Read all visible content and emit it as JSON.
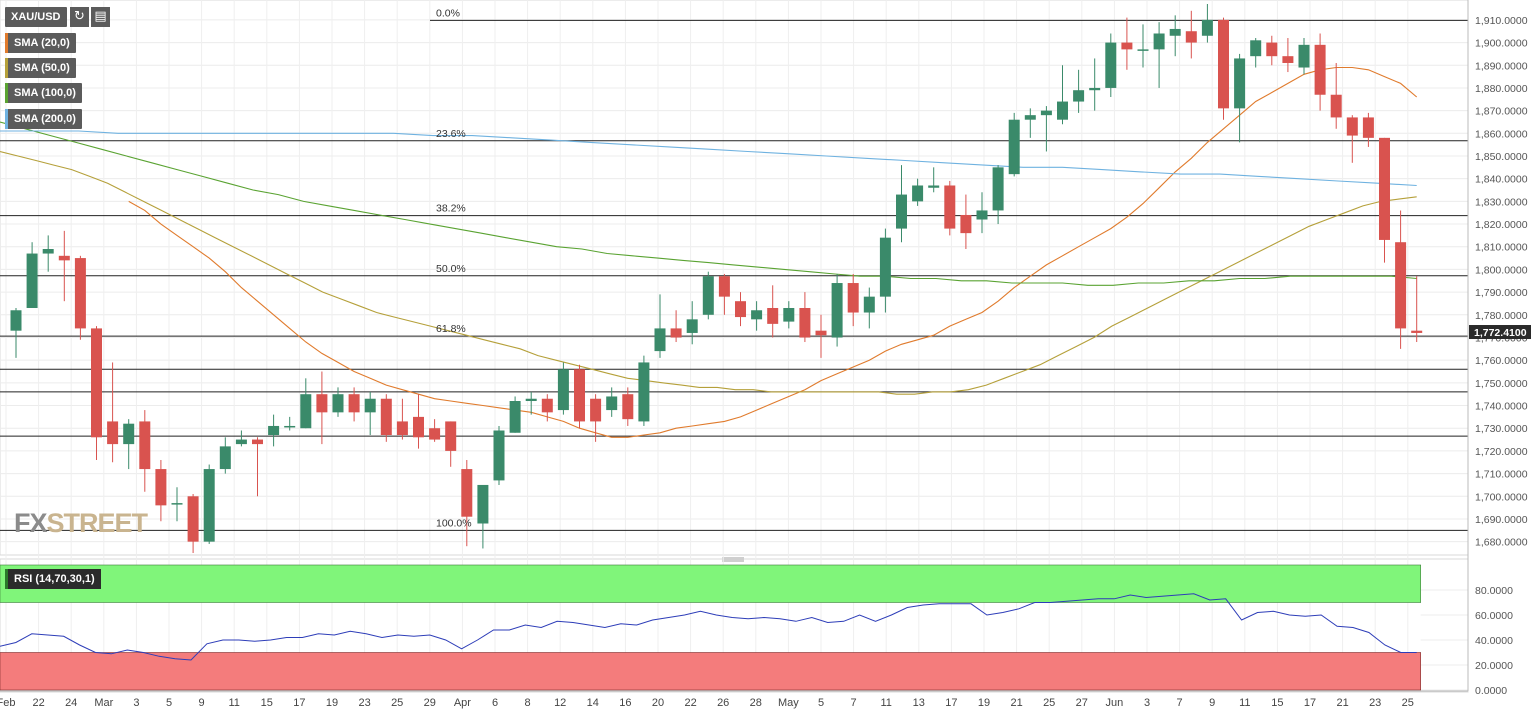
{
  "symbol": "XAU/USD",
  "toolbar": {
    "refresh_icon": "refresh-icon",
    "settings_icon": "bar-settings-icon"
  },
  "indicators": [
    {
      "label": "SMA (20,0)",
      "color": "#e07b2d"
    },
    {
      "label": "SMA (50,0)",
      "color": "#b5a03a"
    },
    {
      "label": "SMA (100,0)",
      "color": "#5aa332"
    },
    {
      "label": "SMA (200,0)",
      "color": "#6fb2e0"
    }
  ],
  "rsi_label": "RSI (14,70,30,1)",
  "logo": {
    "fx": "FX",
    "street": "STREET"
  },
  "current_price": "1,772.4100",
  "colors": {
    "up": "#3a8a6a",
    "down": "#d9534f",
    "overbought": "#80f57a",
    "oversold": "#f47c7c",
    "rsi_line": "#2d3db8"
  },
  "chart_data": [
    {
      "type": "candlestick",
      "title": "",
      "ylim": [
        1675,
        1917
      ],
      "y_ticks": [
        "1,910.0000",
        "1,900.0000",
        "1,890.0000",
        "1,880.0000",
        "1,870.0000",
        "1,860.0000",
        "1,850.0000",
        "1,840.0000",
        "1,830.0000",
        "1,820.0000",
        "1,810.0000",
        "1,800.0000",
        "1,790.0000",
        "1,780.0000",
        "1,770.0000",
        "1,760.0000",
        "1,750.0000",
        "1,740.0000",
        "1,730.0000",
        "1,720.0000",
        "1,710.0000",
        "1,700.0000",
        "1,690.0000",
        "1,680.0000"
      ],
      "x_ticks": [
        "Feb",
        "22",
        "24",
        "Mar",
        "3",
        "5",
        "9",
        "11",
        "15",
        "17",
        "19",
        "23",
        "25",
        "29",
        "Apr",
        "6",
        "8",
        "12",
        "14",
        "16",
        "20",
        "22",
        "26",
        "28",
        "May",
        "5",
        "7",
        "11",
        "13",
        "17",
        "19",
        "21",
        "25",
        "27",
        "Jun",
        "3",
        "7",
        "9",
        "11",
        "15",
        "17",
        "21",
        "23",
        "25"
      ],
      "fibonacci": [
        {
          "label": "0.0%",
          "price": 1909.8
        },
        {
          "label": "23.6%",
          "price": 1856.7
        },
        {
          "label": "38.2%",
          "price": 1823.7
        },
        {
          "label": "50.0%",
          "price": 1797.2
        },
        {
          "label": "61.8%",
          "price": 1770.6
        },
        {
          "label": "100.0%",
          "price": 1685.0
        }
      ],
      "support_levels": [
        1756.0,
        1746.0,
        1726.5
      ],
      "candles": [
        [
          1773,
          1782,
          1761,
          1783
        ],
        [
          1783,
          1807,
          1783,
          1812
        ],
        [
          1807,
          1809,
          1799,
          1815
        ],
        [
          1806,
          1804,
          1786,
          1817
        ],
        [
          1805,
          1774,
          1769,
          1806
        ],
        [
          1774,
          1726,
          1716,
          1775
        ],
        [
          1733,
          1723,
          1715,
          1759
        ],
        [
          1723,
          1732,
          1712,
          1734
        ],
        [
          1733,
          1712,
          1702,
          1738
        ],
        [
          1712,
          1696,
          1689,
          1716
        ],
        [
          1697,
          1697,
          1689,
          1704
        ],
        [
          1700,
          1680,
          1675,
          1701
        ],
        [
          1680,
          1712,
          1679,
          1714
        ],
        [
          1712,
          1722,
          1710,
          1726
        ],
        [
          1723,
          1725,
          1722,
          1729
        ],
        [
          1725,
          1723,
          1700,
          1726
        ],
        [
          1727,
          1731,
          1722,
          1736
        ],
        [
          1731,
          1731,
          1729,
          1735
        ],
        [
          1730,
          1745,
          1730,
          1752
        ],
        [
          1745,
          1737,
          1723,
          1755
        ],
        [
          1737,
          1745,
          1735,
          1748
        ],
        [
          1745,
          1737,
          1733,
          1748
        ],
        [
          1737,
          1743,
          1727,
          1746
        ],
        [
          1743,
          1727,
          1724,
          1745
        ],
        [
          1733,
          1727,
          1725,
          1743
        ],
        [
          1735,
          1726,
          1721,
          1745
        ],
        [
          1730,
          1725,
          1724,
          1734
        ],
        [
          1733,
          1720,
          1713,
          1733
        ],
        [
          1712,
          1691,
          1678,
          1716
        ],
        [
          1688,
          1705,
          1677,
          1704
        ],
        [
          1707,
          1729,
          1705,
          1731
        ],
        [
          1728,
          1742,
          1728,
          1744
        ],
        [
          1742,
          1743,
          1736,
          1746
        ],
        [
          1743,
          1737,
          1733,
          1745
        ],
        [
          1738,
          1756,
          1736,
          1759
        ],
        [
          1756,
          1733,
          1730,
          1758
        ],
        [
          1743,
          1733,
          1724,
          1745
        ],
        [
          1738,
          1744,
          1735,
          1748
        ],
        [
          1745,
          1734,
          1731,
          1748
        ],
        [
          1733,
          1759,
          1731,
          1762
        ],
        [
          1764,
          1774,
          1761,
          1789
        ],
        [
          1774,
          1770,
          1768,
          1782
        ],
        [
          1772,
          1778,
          1767,
          1786
        ],
        [
          1780,
          1797,
          1778,
          1799
        ],
        [
          1797,
          1788,
          1780,
          1798
        ],
        [
          1786,
          1779,
          1775,
          1790
        ],
        [
          1778,
          1782,
          1773,
          1786
        ],
        [
          1783,
          1776,
          1770,
          1793
        ],
        [
          1777,
          1783,
          1774,
          1786
        ],
        [
          1783,
          1770,
          1768,
          1790
        ],
        [
          1773,
          1771,
          1761,
          1780
        ],
        [
          1770,
          1794,
          1766,
          1798
        ],
        [
          1794,
          1781,
          1775,
          1798
        ],
        [
          1781,
          1788,
          1774,
          1792
        ],
        [
          1788,
          1814,
          1781,
          1818
        ],
        [
          1818,
          1833,
          1812,
          1846
        ],
        [
          1830,
          1837,
          1828,
          1840
        ],
        [
          1836,
          1837,
          1834,
          1845
        ],
        [
          1837,
          1818,
          1815,
          1839
        ],
        [
          1824,
          1816,
          1809,
          1833
        ],
        [
          1822,
          1826,
          1816,
          1834
        ],
        [
          1826,
          1845,
          1820,
          1846
        ],
        [
          1842,
          1866,
          1841,
          1869
        ],
        [
          1866,
          1868,
          1858,
          1871
        ],
        [
          1868,
          1870,
          1852,
          1872
        ],
        [
          1866,
          1874,
          1864,
          1890
        ],
        [
          1874,
          1879,
          1869,
          1888
        ],
        [
          1879,
          1880,
          1870,
          1893
        ],
        [
          1880,
          1900,
          1876,
          1904
        ],
        [
          1900,
          1897,
          1888,
          1911
        ],
        [
          1897,
          1897,
          1889,
          1908
        ],
        [
          1897,
          1904,
          1880,
          1909
        ],
        [
          1903,
          1906,
          1894,
          1912
        ],
        [
          1905,
          1900,
          1893,
          1914
        ],
        [
          1903,
          1910,
          1900,
          1917
        ],
        [
          1910,
          1871,
          1866,
          1911
        ],
        [
          1871,
          1893,
          1856,
          1895
        ],
        [
          1894,
          1901,
          1889,
          1902
        ],
        [
          1900,
          1894,
          1890,
          1903
        ],
        [
          1894,
          1891,
          1887,
          1902
        ],
        [
          1889,
          1899,
          1886,
          1902
        ],
        [
          1899,
          1877,
          1870,
          1904
        ],
        [
          1877,
          1867,
          1862,
          1891
        ],
        [
          1867,
          1859,
          1847,
          1868
        ],
        [
          1867,
          1858,
          1854,
          1869
        ],
        [
          1858,
          1813,
          1803,
          1858
        ],
        [
          1812,
          1774,
          1765,
          1826
        ],
        [
          1773,
          1772,
          1768,
          1797
        ]
      ],
      "series": [
        {
          "name": "SMA (20,0)",
          "values": [
            1830,
            1826,
            1820,
            1815,
            1810,
            1805,
            1799,
            1792,
            1786,
            1780,
            1774,
            1768,
            1763,
            1759,
            1755,
            1752,
            1749,
            1747,
            1745,
            1743,
            1742,
            1741,
            1740,
            1739,
            1738,
            1737,
            1735,
            1733,
            1730,
            1728,
            1726,
            1726,
            1727,
            1728,
            1730,
            1731,
            1732,
            1733,
            1735,
            1738,
            1741,
            1744,
            1747,
            1751,
            1754,
            1757,
            1760,
            1764,
            1767,
            1769,
            1771,
            1775,
            1778,
            1781,
            1786,
            1792,
            1797,
            1802,
            1806,
            1810,
            1814,
            1818,
            1823,
            1829,
            1836,
            1843,
            1849,
            1856,
            1862,
            1868,
            1874,
            1878,
            1882,
            1886,
            1888,
            1889,
            1889,
            1888,
            1885,
            1882,
            1876
          ]
        },
        {
          "name": "SMA (50,0)",
          "values": [
            1852,
            1850,
            1848,
            1846,
            1844,
            1841,
            1838,
            1834,
            1830,
            1826,
            1822,
            1818,
            1814,
            1810,
            1806,
            1802,
            1798,
            1794,
            1790,
            1787,
            1784,
            1781,
            1779,
            1777,
            1775,
            1773,
            1771,
            1769,
            1767,
            1765,
            1762,
            1760,
            1758,
            1756,
            1754,
            1752,
            1751,
            1750,
            1749,
            1748,
            1748,
            1747,
            1747,
            1746,
            1746,
            1746,
            1746,
            1746,
            1746,
            1746,
            1745,
            1745,
            1746,
            1746,
            1747,
            1749,
            1752,
            1755,
            1758,
            1762,
            1766,
            1770,
            1775,
            1779,
            1783,
            1787,
            1791,
            1795,
            1799,
            1803,
            1807,
            1811,
            1815,
            1819,
            1822,
            1825,
            1828,
            1830,
            1831,
            1832
          ]
        },
        {
          "name": "SMA (100,0)",
          "values": [
            1865,
            1862,
            1859,
            1856,
            1853,
            1850,
            1847,
            1844,
            1841,
            1838,
            1835,
            1833,
            1830,
            1828,
            1826,
            1824,
            1822,
            1820,
            1818,
            1816,
            1814,
            1812,
            1810,
            1809,
            1807,
            1806,
            1805,
            1804,
            1803,
            1802,
            1801,
            1800,
            1799,
            1798,
            1797,
            1797,
            1796,
            1796,
            1795,
            1795,
            1794,
            1794,
            1794,
            1793,
            1793,
            1794,
            1794,
            1795,
            1795,
            1796,
            1796,
            1797,
            1797,
            1797,
            1797,
            1797,
            1796
          ]
        },
        {
          "name": "SMA (200,0)",
          "values": [
            1861,
            1861,
            1861,
            1860,
            1860,
            1860,
            1860,
            1860,
            1860,
            1860,
            1860,
            1859,
            1859,
            1858,
            1857,
            1856,
            1855,
            1854,
            1853,
            1852,
            1851,
            1850,
            1849,
            1848,
            1847,
            1846,
            1845,
            1845,
            1844,
            1843,
            1842,
            1842,
            1841,
            1840,
            1839,
            1838,
            1837
          ]
        }
      ]
    },
    {
      "type": "line",
      "title": "RSI (14,70,30,1)",
      "ylim": [
        0,
        100
      ],
      "y_ticks": [
        "80.0000",
        "60.0000",
        "40.0000",
        "20.0000",
        "0.0000"
      ],
      "bands": {
        "overbought": 70,
        "oversold": 30
      },
      "series": [
        {
          "name": "RSI (14,70,30,1)",
          "values": [
            35,
            38,
            45,
            44,
            43,
            36,
            30,
            29,
            32,
            30,
            27,
            25,
            24,
            37,
            40,
            40,
            39,
            40,
            42,
            42,
            45,
            44,
            47,
            45,
            42,
            44,
            43,
            44,
            40,
            33,
            40,
            48,
            48,
            52,
            50,
            55,
            54,
            52,
            50,
            53,
            52,
            56,
            58,
            60,
            63,
            60,
            58,
            57,
            58,
            57,
            55,
            58,
            54,
            55,
            60,
            55,
            60,
            66,
            68,
            69,
            69,
            69,
            60,
            62,
            65,
            70,
            70,
            71,
            72,
            73,
            73,
            76,
            74,
            75,
            76,
            77,
            72,
            73,
            56,
            62,
            63,
            60,
            59,
            60,
            51,
            50,
            46,
            36,
            30,
            30
          ]
        }
      ]
    }
  ]
}
